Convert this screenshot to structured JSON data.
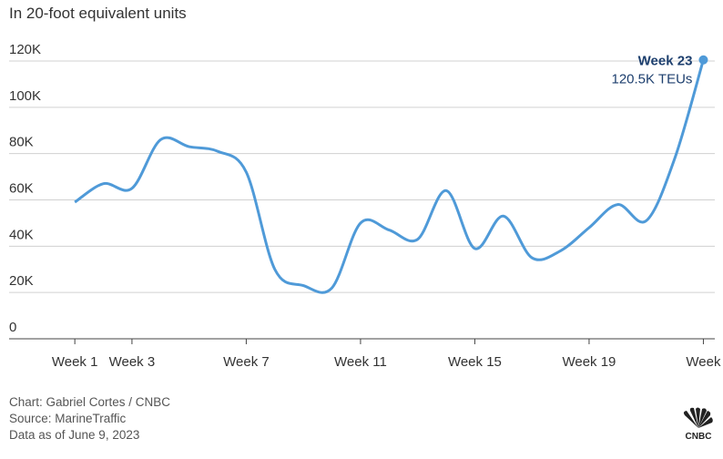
{
  "chart_data": {
    "type": "line",
    "subtitle": "In 20-foot equivalent units",
    "x": [
      1,
      2,
      3,
      4,
      5,
      6,
      7,
      8,
      9,
      10,
      11,
      12,
      13,
      14,
      15,
      16,
      17,
      18,
      19,
      20,
      21,
      22,
      23
    ],
    "series": [
      {
        "color": "#4f9ad8",
        "values": [
          59,
          67,
          65,
          86,
          83,
          81,
          72,
          30,
          23,
          22,
          50,
          47,
          43,
          64,
          39,
          53,
          35,
          38,
          48,
          58,
          51,
          78,
          120.5
        ]
      }
    ],
    "xlim": [
      -1.3,
      23.4
    ],
    "xticks": [
      {
        "value": 1,
        "label": "Week 1"
      },
      {
        "value": 3,
        "label": "Week 3"
      },
      {
        "value": 7,
        "label": "Week 7"
      },
      {
        "value": 11,
        "label": "Week 11"
      },
      {
        "value": 15,
        "label": "Week 15"
      },
      {
        "value": 19,
        "label": "Week 19"
      },
      {
        "value": 23,
        "label": "Week"
      }
    ],
    "ylim": [
      0,
      120
    ],
    "yticks": [
      0,
      {
        "value": 20,
        "label": "20K"
      },
      {
        "value": 40,
        "label": "40K"
      },
      {
        "value": 60,
        "label": "60K"
      },
      {
        "value": 80,
        "label": "80K"
      },
      {
        "value": 100,
        "label": "100K"
      },
      {
        "value": 120,
        "label": "120K"
      }
    ],
    "grid": true,
    "annotation": {
      "title": "Week 23",
      "text": "120.5K TEUs"
    },
    "footer": [
      "Chart: Gabriel Cortes / CNBC",
      "Source: MarineTraffic",
      "Data as of June 9, 2023"
    ],
    "logo_text": "CNBC"
  }
}
